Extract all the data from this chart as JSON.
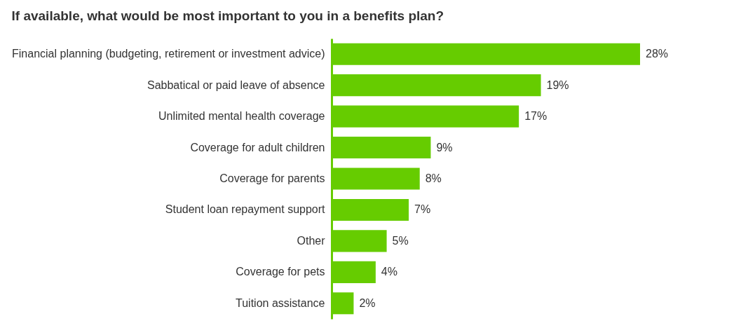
{
  "chart_data": {
    "type": "bar",
    "orientation": "horizontal",
    "title": "If available, what would be most important to you in a benefits plan?",
    "categories": [
      "Financial planning (budgeting, retirement or investment advice)",
      "Sabbatical or paid leave of absence",
      "Unlimited mental health coverage",
      "Coverage for adult children",
      "Coverage for parents",
      "Student loan repayment support",
      "Other",
      "Coverage for pets",
      "Tuition assistance"
    ],
    "values": [
      28,
      19,
      17,
      9,
      8,
      7,
      5,
      4,
      2
    ],
    "value_labels": [
      "28%",
      "19%",
      "17%",
      "9%",
      "8%",
      "7%",
      "5%",
      "4%",
      "2%"
    ],
    "color": "#66cc00",
    "tick_labels": "y",
    "grid": false
  }
}
